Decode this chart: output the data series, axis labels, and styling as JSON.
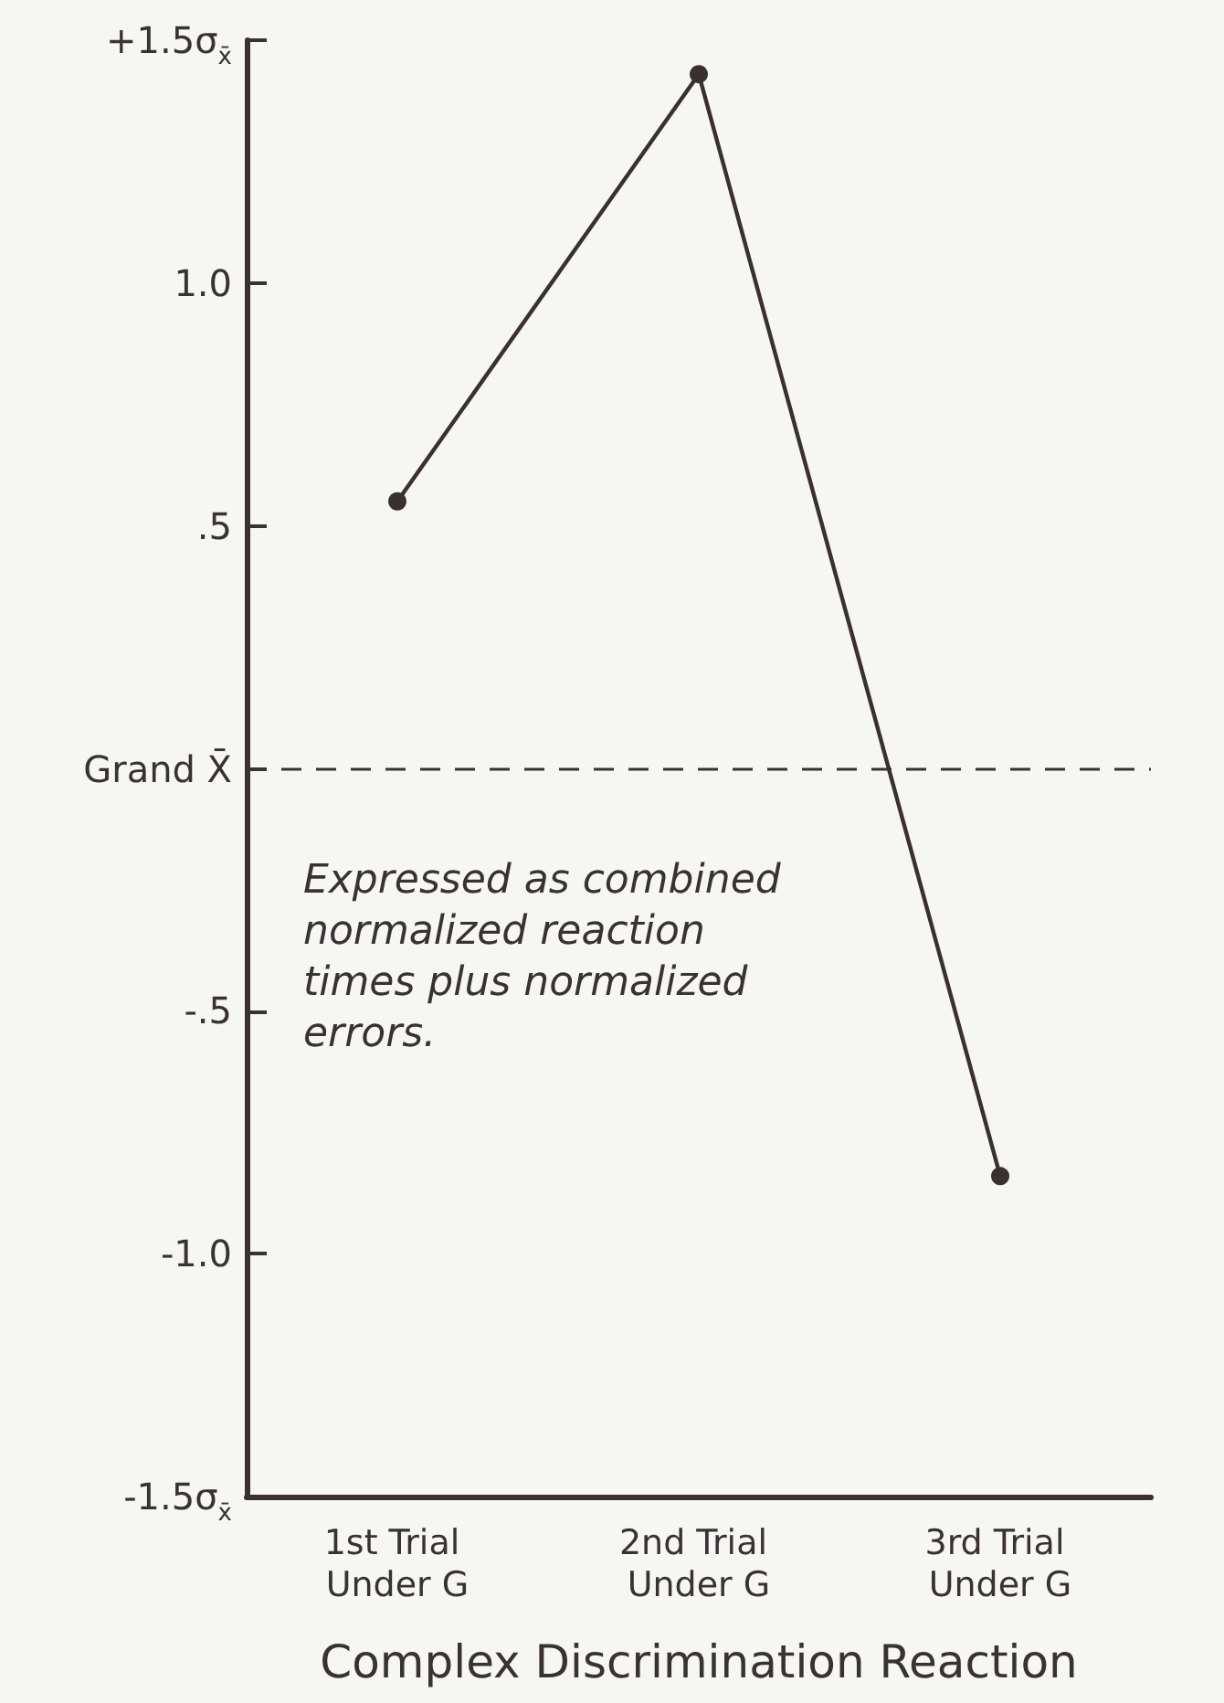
{
  "chart_data": {
    "type": "line",
    "xlabel": "Complex Discrimination Reaction",
    "categories": [
      "1st Trial Under G",
      "2nd Trial Under G",
      "3rd Trial Under G"
    ],
    "values": [
      0.55,
      1.43,
      -0.84
    ],
    "color": "#3a3030",
    "marker": "circle",
    "line_style": "solid",
    "ylim": [
      -1.5,
      1.5
    ],
    "yticks": [
      {
        "value": -1.5,
        "label": "-1.5σ$_{x̄}$"
      },
      {
        "value": -1,
        "label": "-1.0"
      },
      {
        "value": -0.5,
        "label": "-.5"
      },
      {
        "value": 0,
        "label": "Grand X̄"
      },
      {
        "value": 0.5,
        "label": ".5"
      },
      {
        "value": 1,
        "label": "1.0"
      },
      {
        "value": 1.5,
        "label": "+1.5σ$_{x̄}$"
      }
    ],
    "ref_lines": [
      {
        "axis": "y",
        "value": 0,
        "line_style": "dashed",
        "color": "#3a3030"
      }
    ],
    "annotations": [
      "Expressed as combined normalized reaction times plus normalized errors."
    ]
  }
}
